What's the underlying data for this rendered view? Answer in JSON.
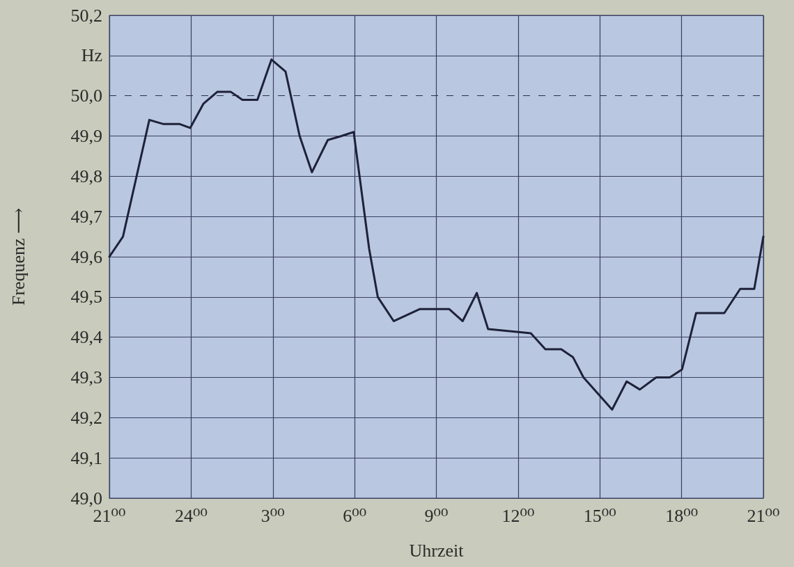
{
  "chart_data": {
    "type": "line",
    "xlabel": "Uhrzeit",
    "ylabel": "Frequenz ⟶",
    "xlim": [
      "--01-01T21:00",
      "--01-02T21:00"
    ],
    "xticks": [
      {
        "value": "--01-01T21:00",
        "label": "21⁰⁰"
      },
      {
        "value": "--01-02T00:00",
        "label": "24⁰⁰"
      },
      {
        "value": "--01-02T03:00",
        "label": "3⁰⁰"
      },
      {
        "value": "--01-02T06:00",
        "label": "6⁰⁰"
      },
      {
        "value": "--01-02T09:00",
        "label": "9⁰⁰"
      },
      {
        "value": "--01-02T12:00",
        "label": "12⁰⁰"
      },
      {
        "value": "--01-02T15:00",
        "label": "15⁰⁰"
      },
      {
        "value": "--01-02T18:00",
        "label": "18⁰⁰"
      },
      {
        "value": "--01-02T21:00",
        "label": "21⁰⁰"
      }
    ],
    "ylim": [
      49.0,
      50.2
    ],
    "yticks": [
      {
        "value": 49.0,
        "label": "49,0"
      },
      {
        "value": 49.1,
        "label": "49,1"
      },
      {
        "value": 49.2,
        "label": "49,2"
      },
      {
        "value": 49.3,
        "label": "49,3"
      },
      {
        "value": 49.4,
        "label": "49,4"
      },
      {
        "value": 49.5,
        "label": "49,5"
      },
      {
        "value": 49.6,
        "label": "49,6"
      },
      {
        "value": 49.7,
        "label": "49,7"
      },
      {
        "value": 49.8,
        "label": "49,8"
      },
      {
        "value": 49.9,
        "label": "49,9"
      },
      {
        "value": 50.0,
        "label": "50,0"
      },
      {
        "value": 50.1,
        "label": "Hz"
      },
      {
        "value": 50.2,
        "label": "50,2"
      }
    ],
    "grid": true,
    "marker": "none",
    "line_style": "solid",
    "ref_lines": [
      {
        "axis": "y",
        "value": 50.0,
        "color": "#2a2e48",
        "line_style": "dashed"
      }
    ],
    "series": [
      {
        "color": "#1e2238",
        "x": [
          "--01-01T21:00",
          "--01-01T21:30",
          "--01-01T22:28",
          "--01-01T22:58",
          "--01-01T23:34",
          "--01-01T23:58",
          "--01-02T00:27",
          "--01-02T00:58",
          "--01-02T01:27",
          "--01-02T01:53",
          "--01-02T02:26",
          "--01-02T02:57",
          "--01-02T03:28",
          "--01-02T03:59",
          "--01-02T04:26",
          "--01-02T05:01",
          "--01-02T05:31",
          "--01-02T05:58",
          "--01-02T06:32",
          "--01-02T06:51",
          "--01-02T07:26",
          "--01-02T08:24",
          "--01-02T09:28",
          "--01-02T09:58",
          "--01-02T10:29",
          "--01-02T10:54",
          "--01-02T12:28",
          "--01-02T13:00",
          "--01-02T13:35",
          "--01-02T14:01",
          "--01-02T14:24",
          "--01-02T15:27",
          "--01-02T15:59",
          "--01-02T16:28",
          "--01-02T17:04",
          "--01-02T17:34",
          "--01-02T18:01",
          "--01-02T18:32",
          "--01-02T19:34",
          "--01-02T20:09",
          "--01-02T20:40",
          "--01-02T21:00"
        ],
        "values": [
          49.6,
          49.65,
          49.94,
          49.93,
          49.93,
          49.92,
          49.98,
          50.01,
          50.01,
          49.99,
          49.99,
          50.09,
          50.06,
          49.9,
          49.81,
          49.89,
          49.9,
          49.91,
          49.62,
          49.5,
          49.44,
          49.47,
          49.47,
          49.44,
          49.51,
          49.42,
          49.41,
          49.37,
          49.37,
          49.35,
          49.3,
          49.22,
          49.29,
          49.27,
          49.3,
          49.3,
          49.32,
          49.46,
          49.46,
          49.52,
          49.52,
          49.65
        ]
      }
    ]
  }
}
